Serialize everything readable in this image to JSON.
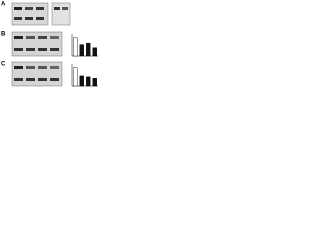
{
  "panels": [
    {
      "label": "A"
    },
    {
      "label": "B",
      "ylim": [
        0,
        1.2
      ],
      "values": [
        1,
        0.62,
        0.7,
        0.45
      ]
    },
    {
      "label": "C",
      "ylim": [
        0,
        1.2
      ],
      "values": [
        1,
        0.55,
        0.5,
        0.42
      ]
    }
  ]
}
